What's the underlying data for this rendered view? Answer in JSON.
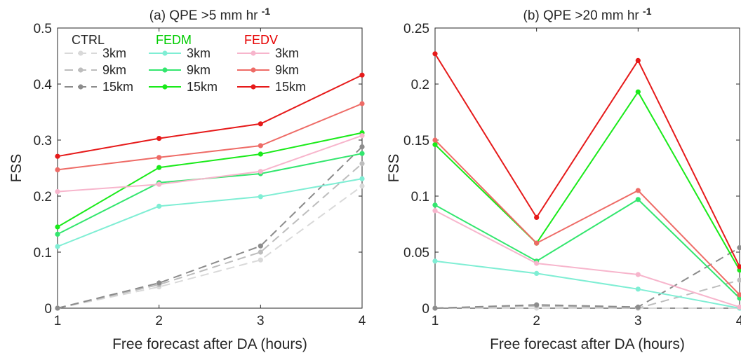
{
  "chart_data": [
    {
      "type": "line",
      "title": "(a) QPE >5 mm hr",
      "title_superscript": "-1",
      "xlabel": "Free forecast after DA (hours)",
      "ylabel": "FSS",
      "x": [
        1,
        2,
        3,
        4
      ],
      "xlim": [
        1,
        4
      ],
      "ylim": [
        0,
        0.5
      ],
      "xticks": [
        "1",
        "2",
        "3",
        "4"
      ],
      "yticks": [
        "0",
        "0.1",
        "0.2",
        "0.3",
        "0.4",
        "0.5"
      ],
      "grid": false,
      "legend_placement": "top-left",
      "legend_groups": [
        {
          "title": "CTRL",
          "color": "#262626"
        },
        {
          "title": "FEDM",
          "color": "#00cc00"
        },
        {
          "title": "FEDV",
          "color": "#e60000"
        }
      ],
      "series": [
        {
          "group": "CTRL",
          "name": "3km",
          "color": "#d9d9d9",
          "dashed": true,
          "values": [
            0.0,
            0.038,
            0.086,
            0.218
          ]
        },
        {
          "group": "CTRL",
          "name": "9km",
          "color": "#bdbdbd",
          "dashed": true,
          "values": [
            0.0,
            0.042,
            0.1,
            0.258
          ]
        },
        {
          "group": "CTRL",
          "name": "15km",
          "color": "#8c8c8c",
          "dashed": true,
          "values": [
            0.0,
            0.045,
            0.111,
            0.288
          ]
        },
        {
          "group": "FEDM",
          "name": "3km",
          "color": "#7feed4",
          "dashed": false,
          "values": [
            0.11,
            0.182,
            0.199,
            0.231
          ]
        },
        {
          "group": "FEDM",
          "name": "9km",
          "color": "#33e66e",
          "dashed": false,
          "values": [
            0.132,
            0.224,
            0.24,
            0.276
          ]
        },
        {
          "group": "FEDM",
          "name": "15km",
          "color": "#1aea1a",
          "dashed": false,
          "values": [
            0.145,
            0.251,
            0.275,
            0.313
          ]
        },
        {
          "group": "FEDV",
          "name": "3km",
          "color": "#f7b5cc",
          "dashed": false,
          "values": [
            0.208,
            0.221,
            0.244,
            0.308
          ]
        },
        {
          "group": "FEDV",
          "name": "9km",
          "color": "#ee6b66",
          "dashed": false,
          "values": [
            0.247,
            0.269,
            0.29,
            0.365
          ]
        },
        {
          "group": "FEDV",
          "name": "15km",
          "color": "#e61a1a",
          "dashed": false,
          "values": [
            0.271,
            0.303,
            0.329,
            0.416
          ]
        }
      ]
    },
    {
      "type": "line",
      "title": "(b) QPE >20 mm hr",
      "title_superscript": "-1",
      "xlabel": "Free forecast after DA (hours)",
      "ylabel": "FSS",
      "x": [
        1,
        2,
        3,
        4
      ],
      "xlim": [
        1,
        4
      ],
      "ylim": [
        0,
        0.25
      ],
      "xticks": [
        "1",
        "2",
        "3",
        "4"
      ],
      "yticks": [
        "0",
        "0.05",
        "0.1",
        "0.15",
        "0.2",
        "0.25"
      ],
      "grid": false,
      "series": [
        {
          "group": "CTRL",
          "name": "3km",
          "color": "#d9d9d9",
          "dashed": true,
          "values": [
            0.0,
            0.0,
            0.0,
            0.0
          ]
        },
        {
          "group": "CTRL",
          "name": "9km",
          "color": "#bdbdbd",
          "dashed": true,
          "values": [
            0.0,
            0.002,
            0.0,
            0.025
          ]
        },
        {
          "group": "CTRL",
          "name": "15km",
          "color": "#8c8c8c",
          "dashed": true,
          "values": [
            0.0,
            0.003,
            0.001,
            0.054
          ]
        },
        {
          "group": "FEDM",
          "name": "3km",
          "color": "#7feed4",
          "dashed": false,
          "values": [
            0.042,
            0.031,
            0.017,
            0.0
          ]
        },
        {
          "group": "FEDM",
          "name": "9km",
          "color": "#33e66e",
          "dashed": false,
          "values": [
            0.092,
            0.042,
            0.097,
            0.009
          ]
        },
        {
          "group": "FEDM",
          "name": "15km",
          "color": "#1aea1a",
          "dashed": false,
          "values": [
            0.146,
            0.058,
            0.193,
            0.034
          ]
        },
        {
          "group": "FEDV",
          "name": "3km",
          "color": "#f7b5cc",
          "dashed": false,
          "values": [
            0.087,
            0.04,
            0.03,
            0.001
          ]
        },
        {
          "group": "FEDV",
          "name": "9km",
          "color": "#ee6b66",
          "dashed": false,
          "values": [
            0.15,
            0.058,
            0.105,
            0.012
          ]
        },
        {
          "group": "FEDV",
          "name": "15km",
          "color": "#e61a1a",
          "dashed": false,
          "values": [
            0.227,
            0.081,
            0.221,
            0.037
          ]
        }
      ]
    }
  ]
}
